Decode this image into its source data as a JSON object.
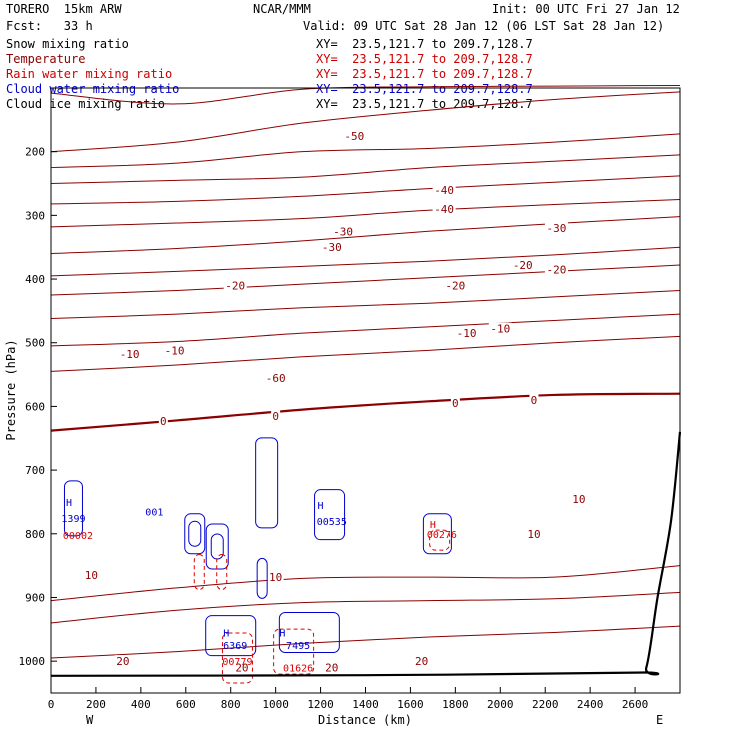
{
  "header": {
    "model": "TORERO  15km ARW",
    "fcst": "Fcst:   33 h",
    "center": "NCAR/MMM",
    "init": "Init: 00 UTC Fri 27 Jan 12",
    "valid": "Valid: 09 UTC Sat 28 Jan 12 (06 LST Sat 28 Jan 12)"
  },
  "legend": [
    {
      "name": "Snow mixing ratio",
      "color": "#000000",
      "xy": "XY=  23.5,121.7 to 209.7,128.7",
      "xy_color": "#000000"
    },
    {
      "name": "Temperature",
      "color": "#8b0000",
      "xy": "XY=  23.5,121.7 to 209.7,128.7",
      "xy_color": "#cc0000"
    },
    {
      "name": "Rain water mixing ratio",
      "color": "#cc0000",
      "xy": "XY=  23.5,121.7 to 209.7,128.7",
      "xy_color": "#cc0000"
    },
    {
      "name": "Cloud water mixing ratio",
      "color": "#0000cc",
      "xy": "XY=  23.5,121.7 to 209.7,128.7",
      "xy_color": "#0000cc"
    },
    {
      "name": "Cloud ice mixing ratio",
      "color": "#000000",
      "xy": "XY=  23.5,121.7 to 209.7,128.7",
      "xy_color": "#000000"
    }
  ],
  "chart_data": {
    "type": "contour",
    "xlabel": "Distance (km)",
    "ylabel": "Pressure (hPa)",
    "xlim": [
      0,
      2800
    ],
    "ylim": [
      1050,
      100
    ],
    "x_ticks": [
      0,
      200,
      400,
      600,
      800,
      1000,
      1200,
      1400,
      1600,
      1800,
      2000,
      2200,
      2400,
      2600
    ],
    "y_ticks": [
      200,
      300,
      400,
      500,
      600,
      700,
      800,
      900,
      1000
    ],
    "x_end_labels": [
      "W",
      "E"
    ],
    "temperature_contours": [
      {
        "value": -60,
        "p": [
          108,
          125,
          102,
          98,
          97,
          96
        ]
      },
      {
        "value": -60,
        "p": [
          200,
          185,
          155,
          135,
          118,
          106
        ]
      },
      {
        "value": -50,
        "p": [
          225,
          218,
          200,
          195,
          185,
          172
        ]
      },
      {
        "value": -40,
        "p": [
          250,
          245,
          240,
          225,
          215,
          205
        ]
      },
      {
        "value": -40,
        "p": [
          282,
          278,
          270,
          258,
          248,
          238
        ]
      },
      {
        "value": -30,
        "p": [
          318,
          312,
          305,
          292,
          283,
          275
        ]
      },
      {
        "value": -30,
        "p": [
          360,
          352,
          340,
          325,
          313,
          302
        ]
      },
      {
        "value": -20,
        "p": [
          395,
          388,
          380,
          372,
          362,
          350
        ]
      },
      {
        "value": -20,
        "p": [
          425,
          418,
          408,
          398,
          388,
          378
        ]
      },
      {
        "value": -10,
        "p": [
          462,
          455,
          445,
          438,
          428,
          418
        ]
      },
      {
        "value": -10,
        "p": [
          505,
          498,
          485,
          475,
          465,
          455
        ]
      },
      {
        "value": -10,
        "p": [
          545,
          535,
          522,
          512,
          500,
          490
        ]
      },
      {
        "value": 0,
        "p": [
          638,
          622,
          605,
          592,
          582,
          580
        ]
      },
      {
        "value": 10,
        "p": [
          905,
          885,
          870,
          868,
          868,
          850
        ]
      },
      {
        "value": 10,
        "p": [
          940,
          920,
          908,
          905,
          902,
          892
        ]
      },
      {
        "value": 20,
        "p": [
          995,
          985,
          972,
          962,
          955,
          945
        ]
      }
    ],
    "temperature_labels": [
      {
        "x": 1000,
        "p": 555,
        "text": "-60"
      },
      {
        "x": 1350,
        "p": 175,
        "text": "-50"
      },
      {
        "x": 1750,
        "p": 260,
        "text": "-40"
      },
      {
        "x": 1750,
        "p": 290,
        "text": "-40"
      },
      {
        "x": 1300,
        "p": 325,
        "text": "-30"
      },
      {
        "x": 1250,
        "p": 350,
        "text": "-30"
      },
      {
        "x": 2250,
        "p": 320,
        "text": "-30"
      },
      {
        "x": 820,
        "p": 410,
        "text": "-20"
      },
      {
        "x": 1800,
        "p": 410,
        "text": "-20"
      },
      {
        "x": 2250,
        "p": 385,
        "text": "-20"
      },
      {
        "x": 2100,
        "p": 378,
        "text": "-20"
      },
      {
        "x": 350,
        "p": 518,
        "text": "-10"
      },
      {
        "x": 550,
        "p": 512,
        "text": "-10"
      },
      {
        "x": 1850,
        "p": 485,
        "text": "-10"
      },
      {
        "x": 2000,
        "p": 478,
        "text": "-10"
      },
      {
        "x": 500,
        "p": 623,
        "text": "0"
      },
      {
        "x": 1000,
        "p": 615,
        "text": "0"
      },
      {
        "x": 1800,
        "p": 595,
        "text": "0"
      },
      {
        "x": 2150,
        "p": 590,
        "text": "0"
      },
      {
        "x": 180,
        "p": 865,
        "text": "10"
      },
      {
        "x": 1000,
        "p": 868,
        "text": "10"
      },
      {
        "x": 2150,
        "p": 800,
        "text": "10"
      },
      {
        "x": 2350,
        "p": 745,
        "text": "10"
      },
      {
        "x": 320,
        "p": 1000,
        "text": "20"
      },
      {
        "x": 850,
        "p": 1010,
        "text": "20"
      },
      {
        "x": 1250,
        "p": 1010,
        "text": "20"
      },
      {
        "x": 1650,
        "p": 1000,
        "text": "20"
      }
    ],
    "moisture_labels": [
      {
        "x": 80,
        "p": 750,
        "text": "H",
        "color": "cloud"
      },
      {
        "x": 100,
        "p": 775,
        "text": "1399",
        "color": "cloud"
      },
      {
        "x": 120,
        "p": 802,
        "text": "00002",
        "color": "rain"
      },
      {
        "x": 460,
        "p": 765,
        "text": "001",
        "color": "cloud"
      },
      {
        "x": 1200,
        "p": 755,
        "text": "H",
        "color": "cloud"
      },
      {
        "x": 1250,
        "p": 780,
        "text": "00535",
        "color": "cloud"
      },
      {
        "x": 1700,
        "p": 785,
        "text": "H",
        "color": "rain"
      },
      {
        "x": 1740,
        "p": 800,
        "text": "00276",
        "color": "rain"
      },
      {
        "x": 780,
        "p": 955,
        "text": "H",
        "color": "cloud"
      },
      {
        "x": 820,
        "p": 975,
        "text": "6369",
        "color": "cloud"
      },
      {
        "x": 830,
        "p": 1000,
        "text": "00779",
        "color": "rain"
      },
      {
        "x": 1030,
        "p": 955,
        "text": "H",
        "color": "cloud"
      },
      {
        "x": 1100,
        "p": 975,
        "text": "7495",
        "color": "cloud"
      },
      {
        "x": 1100,
        "p": 1010,
        "text": "01626",
        "color": "rain"
      }
    ]
  },
  "colors": {
    "temperature": "#8b0000",
    "rain": "#dd0000",
    "cloud": "#0000cc",
    "terrain": "#000000"
  }
}
